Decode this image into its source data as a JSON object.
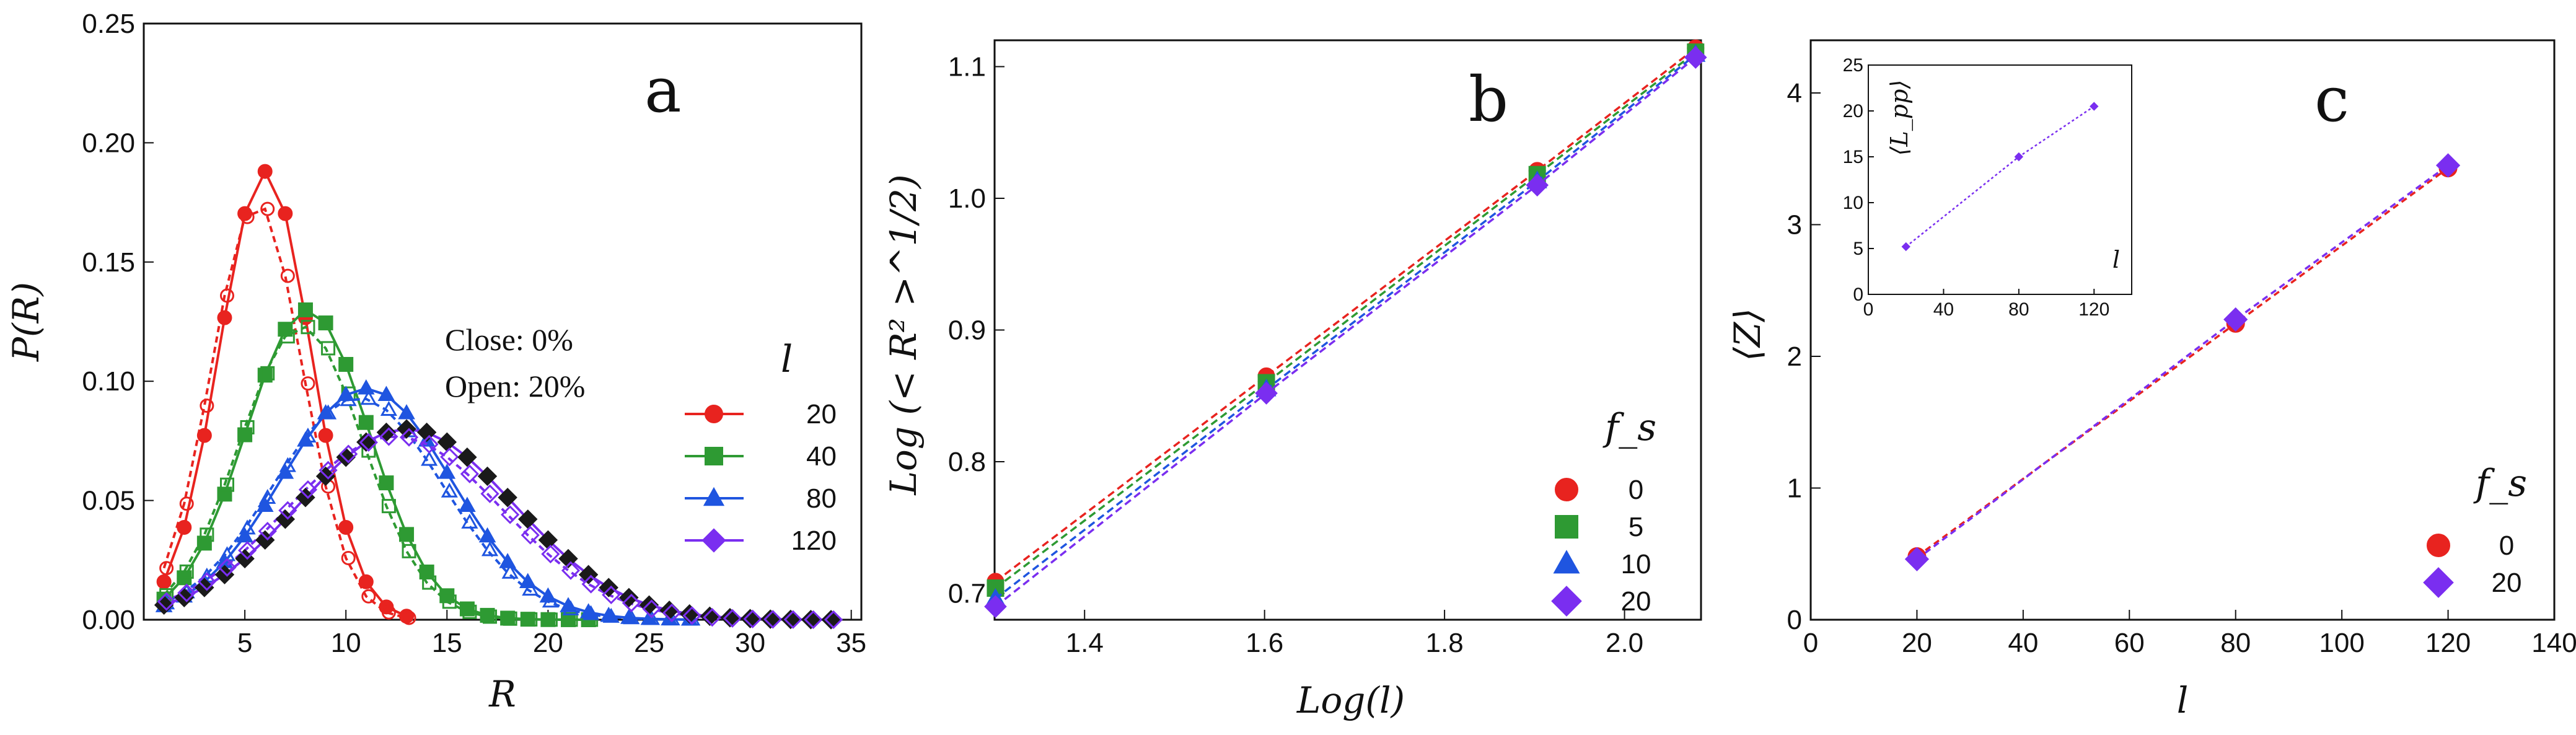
{
  "figure": {
    "colors": {
      "red": "#e8231f",
      "green": "#2e9a33",
      "blue": "#1f55e0",
      "purple": "#7a2ef0",
      "black": "#1a1a1a"
    }
  },
  "chart_data": [
    {
      "panel": "a",
      "type": "line",
      "title": "a",
      "xlabel": "R",
      "ylabel": "P(R)",
      "xlim": [
        0,
        35.5
      ],
      "ylim": [
        0,
        0.25
      ],
      "xticks": [
        "5",
        "10",
        "15",
        "20",
        "25",
        "30",
        "35"
      ],
      "yticks": [
        "0.00",
        "0.05",
        "0.10",
        "0.15",
        "0.20",
        "0.25"
      ],
      "annotations": [
        "Close:  0%",
        "Open: 20%"
      ],
      "legend_title": "l",
      "legend_position": "right",
      "series": [
        {
          "name": "20",
          "color": "red",
          "marker": "circle",
          "mu": 6.0,
          "sigma": 2.25,
          "peak": 0.188,
          "peak_open": 0.175,
          "x_open_shift": -0.4,
          "n": 13
        },
        {
          "name": "40",
          "color": "green",
          "marker": "square",
          "mu": 8.1,
          "sigma": 3.05,
          "peak": 0.13,
          "peak_open": 0.123,
          "x_open_shift": -0.3,
          "n": 22
        },
        {
          "name": "80",
          "color": "blue",
          "marker": "triangle",
          "mu": 11.0,
          "sigma": 4.2,
          "peak": 0.097,
          "peak_open": 0.093,
          "x_open_shift": -0.4,
          "n": 27
        },
        {
          "name": "120",
          "color": "purple",
          "marker": "diamond",
          "mu": 13.0,
          "sigma": 5.3,
          "peak": 0.08,
          "peak_open": 0.077,
          "x_open_shift": -0.6,
          "n": 34
        }
      ]
    },
    {
      "panel": "b",
      "type": "line",
      "title": "b",
      "xlabel": "Log(l)",
      "ylabel": "Log (< R² >^1/2)",
      "xlim": [
        1.3,
        2.085
      ],
      "ylim": [
        0.68,
        1.12
      ],
      "xticks": [
        "1.4",
        "1.6",
        "1.8",
        "2.0"
      ],
      "yticks": [
        "0.7",
        "0.8",
        "0.9",
        "1.0",
        "1.1"
      ],
      "legend_title": "f_s",
      "legend_position": "bottom-right",
      "x": [
        1.301,
        1.602,
        1.903,
        2.079
      ],
      "series": [
        {
          "name": "0",
          "color": "red",
          "marker": "circle",
          "values": [
            0.709,
            0.865,
            1.021,
            1.114
          ]
        },
        {
          "name": "5",
          "color": "green",
          "marker": "square",
          "values": [
            0.704,
            0.86,
            1.018,
            1.111
          ]
        },
        {
          "name": "10",
          "color": "blue",
          "marker": "triangle",
          "values": [
            0.696,
            0.855,
            1.013,
            1.109
          ]
        },
        {
          "name": "20",
          "color": "purple",
          "marker": "diamond",
          "values": [
            0.69,
            0.852,
            1.01,
            1.107
          ]
        }
      ]
    },
    {
      "panel": "c",
      "type": "line",
      "title": "c",
      "xlabel": "l",
      "ylabel": "⟨Z⟩",
      "xlim": [
        0,
        140
      ],
      "ylim": [
        0,
        4.4
      ],
      "xticks": [
        "0",
        "20",
        "40",
        "60",
        "80",
        "100",
        "120",
        "140"
      ],
      "yticks": [
        "0",
        "1",
        "2",
        "3",
        "4"
      ],
      "legend_title": "f_s",
      "legend_position": "bottom-right",
      "x": [
        20,
        80,
        120
      ],
      "series": [
        {
          "name": "0",
          "color": "red",
          "marker": "circle",
          "values": [
            0.48,
            2.25,
            3.43
          ]
        },
        {
          "name": "20",
          "color": "purple",
          "marker": "diamond",
          "values": [
            0.46,
            2.28,
            3.45
          ]
        }
      ],
      "inset": {
        "type": "line",
        "xlabel": "l",
        "ylabel": "⟨L_pp⟩",
        "xlim": [
          0,
          140
        ],
        "ylim": [
          0,
          25
        ],
        "xticks": [
          "0",
          "40",
          "80",
          "120"
        ],
        "yticks": [
          "0",
          "5",
          "10",
          "15",
          "20",
          "25"
        ],
        "x": [
          20,
          80,
          120
        ],
        "values": [
          5.2,
          15.0,
          20.5
        ],
        "color": "purple"
      }
    }
  ]
}
